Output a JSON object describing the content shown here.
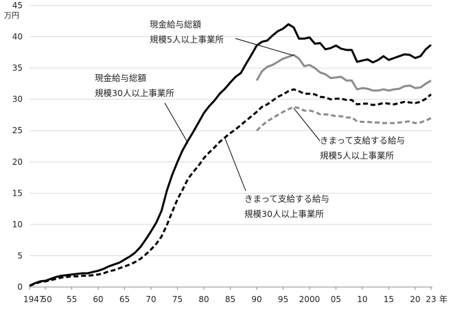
{
  "chart_data": {
    "type": "line",
    "title": "",
    "xlabel": "年",
    "ylabel": "万円",
    "ylim": [
      0,
      45
    ],
    "xlim": [
      1947,
      2023
    ],
    "y_ticks": [
      0,
      5,
      10,
      15,
      20,
      25,
      30,
      35,
      40,
      45
    ],
    "x_ticks": [
      {
        "year": 1947,
        "label": "1947"
      },
      {
        "year": 1950,
        "label": "50"
      },
      {
        "year": 1955,
        "label": "55"
      },
      {
        "year": 1960,
        "label": "60"
      },
      {
        "year": 1965,
        "label": "65"
      },
      {
        "year": 1970,
        "label": "70"
      },
      {
        "year": 1975,
        "label": "75"
      },
      {
        "year": 1980,
        "label": "80"
      },
      {
        "year": 1985,
        "label": "85"
      },
      {
        "year": 1990,
        "label": "90"
      },
      {
        "year": 1995,
        "label": "95"
      },
      {
        "year": 2000,
        "label": "2000"
      },
      {
        "year": 2005,
        "label": "05"
      },
      {
        "year": 2010,
        "label": "10"
      },
      {
        "year": 2015,
        "label": "15"
      },
      {
        "year": 2020,
        "label": "20"
      },
      {
        "year": 2023,
        "label": "23"
      }
    ],
    "grid": "horizontal",
    "series": [
      {
        "name": "現金給与総額 規模30人以上事業所",
        "color": "#000000",
        "style": "solid",
        "x": [
          1947,
          1948,
          1949,
          1950,
          1951,
          1952,
          1953,
          1954,
          1955,
          1956,
          1957,
          1958,
          1959,
          1960,
          1961,
          1962,
          1963,
          1964,
          1965,
          1966,
          1967,
          1968,
          1969,
          1970,
          1971,
          1972,
          1973,
          1974,
          1975,
          1976,
          1977,
          1978,
          1979,
          1980,
          1981,
          1982,
          1983,
          1984,
          1985,
          1986,
          1987,
          1988,
          1989,
          1990,
          1991,
          1992,
          1993,
          1994,
          1995,
          1996,
          1997,
          1998,
          1999,
          2000,
          2001,
          2002,
          2003,
          2004,
          2005,
          2006,
          2007,
          2008,
          2009,
          2010,
          2011,
          2012,
          2013,
          2014,
          2015,
          2016,
          2017,
          2018,
          2019,
          2020,
          2021,
          2022,
          2023
        ],
        "y": [
          0.2,
          0.6,
          0.9,
          1.0,
          1.3,
          1.6,
          1.8,
          1.9,
          2.0,
          2.1,
          2.2,
          2.2,
          2.4,
          2.6,
          2.9,
          3.3,
          3.6,
          3.9,
          4.4,
          4.9,
          5.5,
          6.4,
          7.6,
          8.9,
          10.3,
          12.2,
          15.4,
          17.9,
          20.0,
          21.9,
          23.4,
          24.8,
          26.3,
          27.8,
          28.9,
          29.8,
          30.9,
          31.7,
          32.7,
          33.6,
          34.2,
          35.7,
          37.1,
          38.6,
          39.2,
          39.4,
          40.2,
          40.9,
          41.3,
          42.0,
          41.5,
          39.7,
          39.7,
          39.9,
          38.9,
          39.0,
          38.0,
          38.2,
          38.6,
          38.1,
          37.9,
          37.9,
          36.0,
          36.2,
          36.4,
          35.9,
          36.3,
          36.9,
          36.3,
          36.6,
          36.9,
          37.2,
          37.1,
          36.6,
          36.9,
          38.0,
          38.7
        ]
      },
      {
        "name": "現金給与総額 規模5人以上事業所",
        "color": "#8c8c8c",
        "style": "solid",
        "x": [
          1990,
          1991,
          1992,
          1993,
          1994,
          1995,
          1996,
          1997,
          1998,
          1999,
          2000,
          2001,
          2002,
          2003,
          2004,
          2005,
          2006,
          2007,
          2008,
          2009,
          2010,
          2011,
          2012,
          2013,
          2014,
          2015,
          2016,
          2017,
          2018,
          2019,
          2020,
          2021,
          2022,
          2023
        ],
        "y": [
          33.0,
          34.5,
          35.2,
          35.5,
          36.0,
          36.5,
          36.8,
          37.1,
          36.5,
          35.3,
          35.5,
          35.0,
          34.3,
          34.0,
          33.4,
          33.5,
          33.6,
          33.0,
          33.0,
          31.6,
          31.8,
          31.7,
          31.4,
          31.4,
          31.6,
          31.4,
          31.6,
          31.7,
          32.1,
          32.2,
          31.8,
          31.9,
          32.5,
          33.0
        ]
      },
      {
        "name": "きまって支給する給与 規模30人以上事業所",
        "color": "#000000",
        "style": "dashed",
        "x": [
          1947,
          1948,
          1949,
          1950,
          1951,
          1952,
          1953,
          1954,
          1955,
          1956,
          1957,
          1958,
          1959,
          1960,
          1961,
          1962,
          1963,
          1964,
          1965,
          1966,
          1967,
          1968,
          1969,
          1970,
          1971,
          1972,
          1973,
          1974,
          1975,
          1976,
          1977,
          1978,
          1979,
          1980,
          1981,
          1982,
          1983,
          1984,
          1985,
          1986,
          1987,
          1988,
          1989,
          1990,
          1991,
          1992,
          1993,
          1994,
          1995,
          1996,
          1997,
          1998,
          1999,
          2000,
          2001,
          2002,
          2003,
          2004,
          2005,
          2006,
          2007,
          2008,
          2009,
          2010,
          2011,
          2012,
          2013,
          2014,
          2015,
          2016,
          2017,
          2018,
          2019,
          2020,
          2021,
          2022,
          2023
        ],
        "y": [
          0.2,
          0.5,
          0.8,
          0.9,
          1.1,
          1.3,
          1.5,
          1.6,
          1.7,
          1.7,
          1.8,
          1.8,
          1.9,
          2.0,
          2.2,
          2.5,
          2.7,
          3.0,
          3.3,
          3.6,
          4.0,
          4.5,
          5.2,
          6.0,
          6.9,
          8.1,
          9.9,
          12.0,
          14.0,
          15.6,
          17.3,
          18.4,
          19.4,
          20.6,
          21.5,
          22.3,
          23.2,
          23.9,
          24.6,
          25.2,
          25.9,
          26.6,
          27.3,
          28.0,
          28.8,
          29.2,
          29.8,
          30.4,
          30.8,
          31.3,
          31.6,
          31.3,
          30.9,
          30.9,
          30.8,
          30.4,
          30.3,
          30.0,
          30.1,
          30.1,
          29.9,
          29.9,
          29.2,
          29.3,
          29.3,
          29.1,
          29.2,
          29.4,
          29.3,
          29.2,
          29.4,
          29.6,
          29.5,
          29.4,
          29.6,
          30.1,
          30.8
        ]
      },
      {
        "name": "きまって支給する給与 規模5人以上事業所",
        "color": "#8c8c8c",
        "style": "dashed",
        "x": [
          1990,
          1991,
          1992,
          1993,
          1994,
          1995,
          1996,
          1997,
          1998,
          1999,
          2000,
          2001,
          2002,
          2003,
          2004,
          2005,
          2006,
          2007,
          2008,
          2009,
          2010,
          2011,
          2012,
          2013,
          2014,
          2015,
          2016,
          2017,
          2018,
          2019,
          2020,
          2021,
          2022,
          2023
        ],
        "y": [
          25.0,
          25.8,
          26.5,
          27.0,
          27.5,
          28.0,
          28.4,
          28.8,
          28.6,
          28.2,
          28.2,
          28.0,
          27.6,
          27.6,
          27.5,
          27.3,
          27.3,
          27.1,
          27.1,
          26.5,
          26.4,
          26.4,
          26.3,
          26.3,
          26.2,
          26.2,
          26.2,
          26.3,
          26.4,
          26.5,
          26.2,
          26.3,
          26.6,
          27.0
        ]
      }
    ],
    "annotations": [
      {
        "lines": [
          "現金給与総額",
          "規模5人以上事業所"
        ],
        "series_index": 1,
        "point_year": 1997,
        "point_value": 37.0
      },
      {
        "lines": [
          "現金給与総額",
          "規模30人以上事業所"
        ],
        "series_index": 0,
        "point_year": 1977,
        "point_value": 23.0
      },
      {
        "lines": [
          "きまって支給する給与",
          "規模5人以上事業所"
        ],
        "series_index": 3,
        "point_year": 1997,
        "point_value": 28.6
      },
      {
        "lines": [
          "きまって支給する給与",
          "規模30人以上事業所"
        ],
        "series_index": 2,
        "point_year": 1984,
        "point_value": 23.8
      }
    ]
  }
}
